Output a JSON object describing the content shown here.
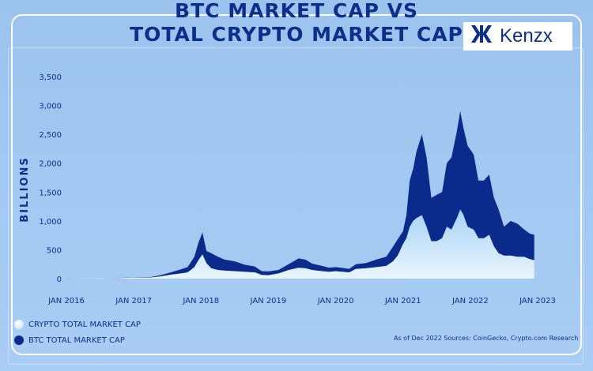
{
  "title": {
    "line1": "BTC MARKET CAP VS",
    "line2": "TOTAL CRYPTO MARKET CAP"
  },
  "logo": {
    "text": "Kenzx",
    "icon": "kenzx-logo-icon"
  },
  "legend": [
    {
      "label": "CRYPTO TOTAL MARKET CAP",
      "color": "#cfe7fb"
    },
    {
      "label": "BTC TOTAL MARKET CAP",
      "color": "#0a2a8c"
    }
  ],
  "source": "As of Dec 2022 Sources: CoinGecko, Crypto.com Research",
  "colors": {
    "total_top": "#cfe7fb",
    "btc": "#0a2a8c",
    "text": "#0d2f8a"
  },
  "chart_data": {
    "type": "area",
    "ylabel": "BILLIONS",
    "ylim": [
      0,
      3500
    ],
    "yticks": [
      0,
      500,
      1000,
      1500,
      2000,
      2500,
      3000,
      3500
    ],
    "ytick_labels": [
      "0",
      "500",
      "1,000",
      "1,500",
      "2,000",
      "2,500",
      "3,000",
      "3,500"
    ],
    "xlim": [
      2016.0,
      2023.0
    ],
    "xticks": [
      2016,
      2017,
      2018,
      2019,
      2020,
      2021,
      2022,
      2023
    ],
    "xtick_labels": [
      "JAN 2016",
      "JAN 2017",
      "JAN 2018",
      "JAN 2019",
      "JAN 2020",
      "JAN 2021",
      "JAN 2022",
      "JAN 2023"
    ],
    "x": [
      2016.0,
      2016.25,
      2016.5,
      2016.75,
      2017.0,
      2017.25,
      2017.4,
      2017.55,
      2017.7,
      2017.8,
      2017.9,
      2017.96,
      2018.02,
      2018.08,
      2018.15,
      2018.25,
      2018.35,
      2018.5,
      2018.65,
      2018.8,
      2018.9,
      2019.0,
      2019.15,
      2019.3,
      2019.45,
      2019.55,
      2019.65,
      2019.8,
      2019.9,
      2020.0,
      2020.2,
      2020.3,
      2020.45,
      2020.6,
      2020.75,
      2020.85,
      2020.92,
      2021.0,
      2021.05,
      2021.1,
      2021.15,
      2021.2,
      2021.28,
      2021.35,
      2021.42,
      2021.5,
      2021.58,
      2021.65,
      2021.72,
      2021.8,
      2021.85,
      2021.9,
      2021.96,
      2022.05,
      2022.12,
      2022.2,
      2022.28,
      2022.35,
      2022.42,
      2022.5,
      2022.6,
      2022.7,
      2022.8,
      2022.88,
      2022.95
    ],
    "series": [
      {
        "name": "CRYPTO TOTAL MARKET CAP",
        "values": [
          7,
          9,
          12,
          14,
          18,
          28,
          60,
          110,
          160,
          200,
          380,
          620,
          800,
          480,
          440,
          380,
          330,
          300,
          240,
          210,
          130,
          125,
          150,
          250,
          350,
          330,
          260,
          220,
          190,
          200,
          170,
          250,
          270,
          330,
          380,
          550,
          680,
          820,
          1100,
          1700,
          1900,
          2200,
          2500,
          2100,
          1400,
          1450,
          1500,
          2000,
          2100,
          2550,
          2900,
          2600,
          2300,
          2150,
          1700,
          1700,
          1800,
          1400,
          1200,
          900,
          1000,
          950,
          850,
          780,
          760
        ]
      },
      {
        "name": "BTC TOTAL MARKET CAP",
        "values": [
          6,
          8,
          10,
          11,
          15,
          20,
          40,
          70,
          90,
          110,
          200,
          320,
          420,
          270,
          180,
          150,
          140,
          130,
          120,
          110,
          65,
          60,
          90,
          150,
          190,
          180,
          150,
          130,
          120,
          130,
          110,
          170,
          180,
          200,
          220,
          300,
          400,
          600,
          700,
          900,
          1000,
          1050,
          1100,
          900,
          650,
          650,
          700,
          900,
          850,
          1050,
          1200,
          1100,
          900,
          850,
          700,
          700,
          760,
          560,
          440,
          400,
          400,
          380,
          380,
          340,
          320
        ]
      }
    ]
  }
}
